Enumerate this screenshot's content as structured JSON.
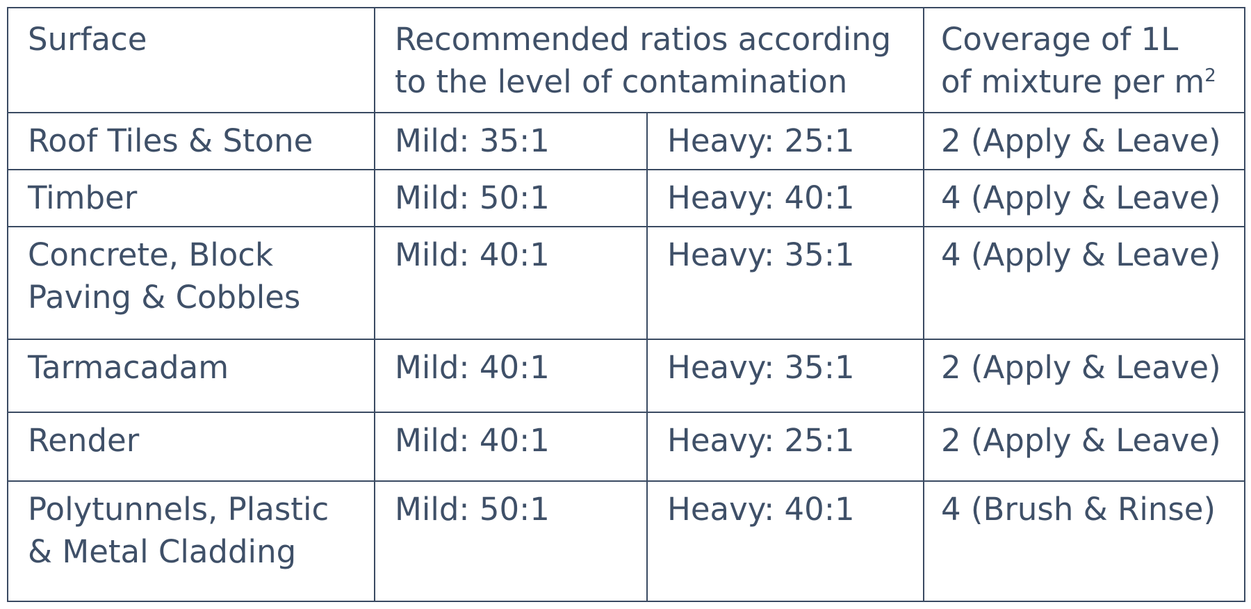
{
  "headers": {
    "surface": "Surface",
    "ratios": "Recommended ratios according to the level of contamination",
    "ratios_line1": "Recommended ratios according",
    "ratios_line2": "to the level of contamination",
    "coverage_line1": "Coverage of 1L",
    "coverage_line2": "of mixture per m",
    "coverage_sup": "2"
  },
  "rows": [
    {
      "surface": [
        "Roof Tiles & Stone"
      ],
      "mild": "Mild: 35:1",
      "heavy": "Heavy: 25:1",
      "coverage": "2 (Apply & Leave)"
    },
    {
      "surface": [
        "Timber"
      ],
      "mild": "Mild: 50:1",
      "heavy": "Heavy: 40:1",
      "coverage": "4 (Apply & Leave)"
    },
    {
      "surface": [
        "Concrete, Block",
        "Paving & Cobbles"
      ],
      "mild": "Mild: 40:1",
      "heavy": "Heavy: 35:1",
      "coverage": "4 (Apply & Leave)"
    },
    {
      "surface": [
        "Tarmacadam"
      ],
      "mild": "Mild: 40:1",
      "heavy": "Heavy: 35:1",
      "coverage": "2 (Apply & Leave)"
    },
    {
      "surface": [
        "Render"
      ],
      "mild": "Mild: 40:1",
      "heavy": "Heavy: 25:1",
      "coverage": "2 (Apply & Leave)"
    },
    {
      "surface": [
        "Polytunnels, Plastic",
        "& Metal Cladding"
      ],
      "mild": "Mild: 50:1",
      "heavy": "Heavy: 40:1",
      "coverage": "4 (Brush & Rinse)"
    }
  ]
}
